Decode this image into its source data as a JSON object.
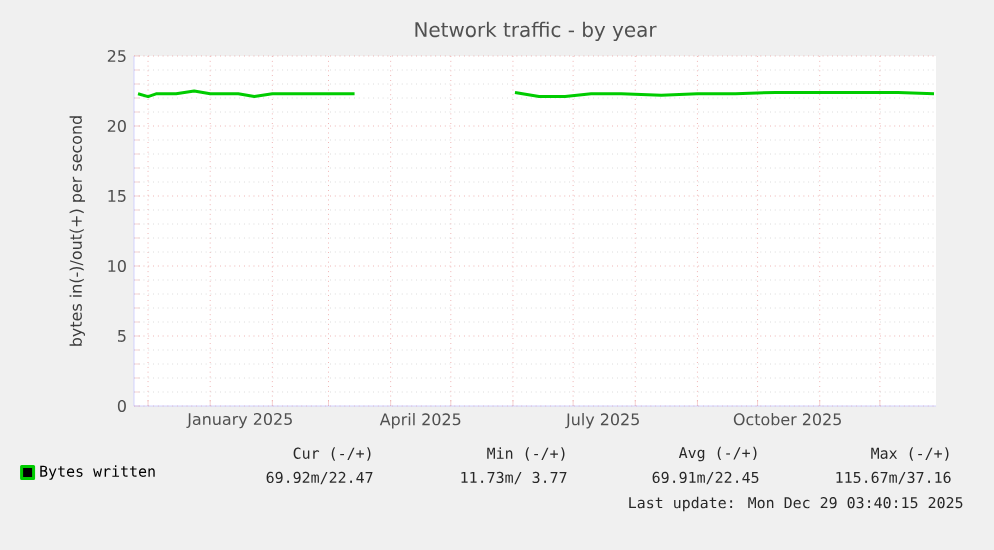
{
  "chart_data": {
    "type": "line",
    "title": "Network traffic - by year",
    "ylabel": "bytes in(-)/out(+) per second",
    "x": [
      "2024-11-26",
      "2024-12-01",
      "2024-12-05",
      "2024-12-15",
      "2024-12-24",
      "2025-01-01",
      "2025-01-15",
      "2025-01-23",
      "2025-02-01",
      "2025-02-15",
      "2025-03-01",
      "2025-03-14",
      "2025-04-20",
      "2025-06-02",
      "2025-06-14",
      "2025-06-27",
      "2025-07-10",
      "2025-07-25",
      "2025-08-14",
      "2025-09-01",
      "2025-09-20",
      "2025-10-10",
      "2025-10-30",
      "2025-11-20",
      "2025-12-10",
      "2025-12-28"
    ],
    "series": [
      {
        "name": "Bytes written",
        "color": "#00cc00",
        "values": [
          22.3,
          22.1,
          22.3,
          22.3,
          22.5,
          22.3,
          22.3,
          22.1,
          22.3,
          22.3,
          22.3,
          22.3,
          null,
          22.4,
          22.1,
          22.1,
          22.3,
          22.3,
          22.2,
          22.3,
          22.3,
          22.4,
          22.4,
          22.4,
          22.4,
          22.3
        ]
      }
    ],
    "xlim": [
      "2024-11-24",
      "2025-12-29"
    ],
    "xticks": [
      {
        "value": "2024-12-01",
        "label": null
      },
      {
        "value": "2025-01-01",
        "label": null
      },
      {
        "value": "2025-02-01",
        "label": null
      },
      {
        "value": "2025-03-01",
        "label": null
      },
      {
        "value": "2025-04-01",
        "label": null
      },
      {
        "value": "2025-05-01",
        "label": null
      },
      {
        "value": "2025-06-01",
        "label": null
      },
      {
        "value": "2025-07-01",
        "label": null
      },
      {
        "value": "2025-08-01",
        "label": null
      },
      {
        "value": "2025-09-01",
        "label": null
      },
      {
        "value": "2025-10-01",
        "label": null
      },
      {
        "value": "2025-11-01",
        "label": null
      },
      {
        "value": "2025-12-01",
        "label": null
      },
      {
        "value": "2025-01-16",
        "label": "January 2025"
      },
      {
        "value": "2025-04-16",
        "label": "April 2025"
      },
      {
        "value": "2025-07-16",
        "label": "July 2025"
      },
      {
        "value": "2025-10-16",
        "label": "October 2025"
      }
    ],
    "ylim": [
      0,
      25
    ],
    "yticks": [
      0,
      5,
      10,
      15,
      20,
      25
    ],
    "grid": true,
    "legend": "bottom left",
    "marker": "none",
    "line_style": "solid",
    "annotations": [
      "Cur (-/+)",
      "Min (-/+)",
      "Avg (-/+)",
      "Max (-/+)",
      "69.92m/22.47",
      "11.73m/ 3.77",
      "69.91m/22.45",
      "115.67m/37.16",
      "Last update: Mon Dec 29 03:40:15 2025"
    ]
  }
}
